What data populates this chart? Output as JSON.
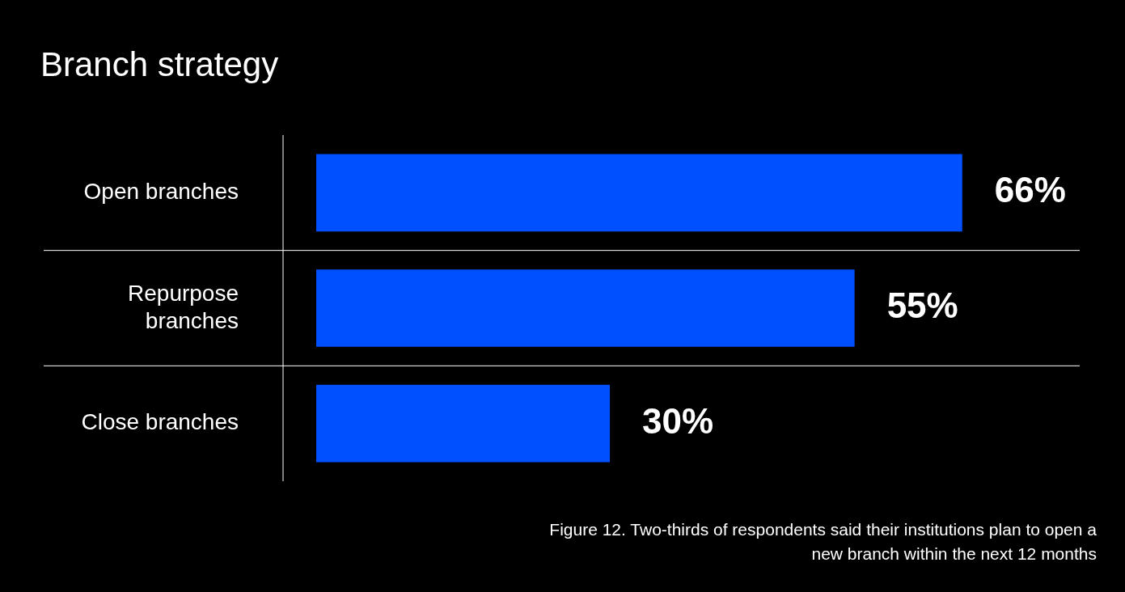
{
  "chart_data": {
    "type": "bar",
    "orientation": "horizontal",
    "title": "Branch strategy",
    "categories": [
      "Open branches",
      "Repurpose branches",
      "Close branches"
    ],
    "values": [
      66,
      55,
      30
    ],
    "color": "#0050ff",
    "value_labels": [
      "66%",
      "55%",
      "30%"
    ],
    "xlim": [
      0,
      78
    ],
    "grid": "y",
    "tick_labels": "y",
    "annotations": [
      "Figure 12. Two-thirds of respondents said their institutions plan to open a new branch within the next 12 months"
    ]
  }
}
